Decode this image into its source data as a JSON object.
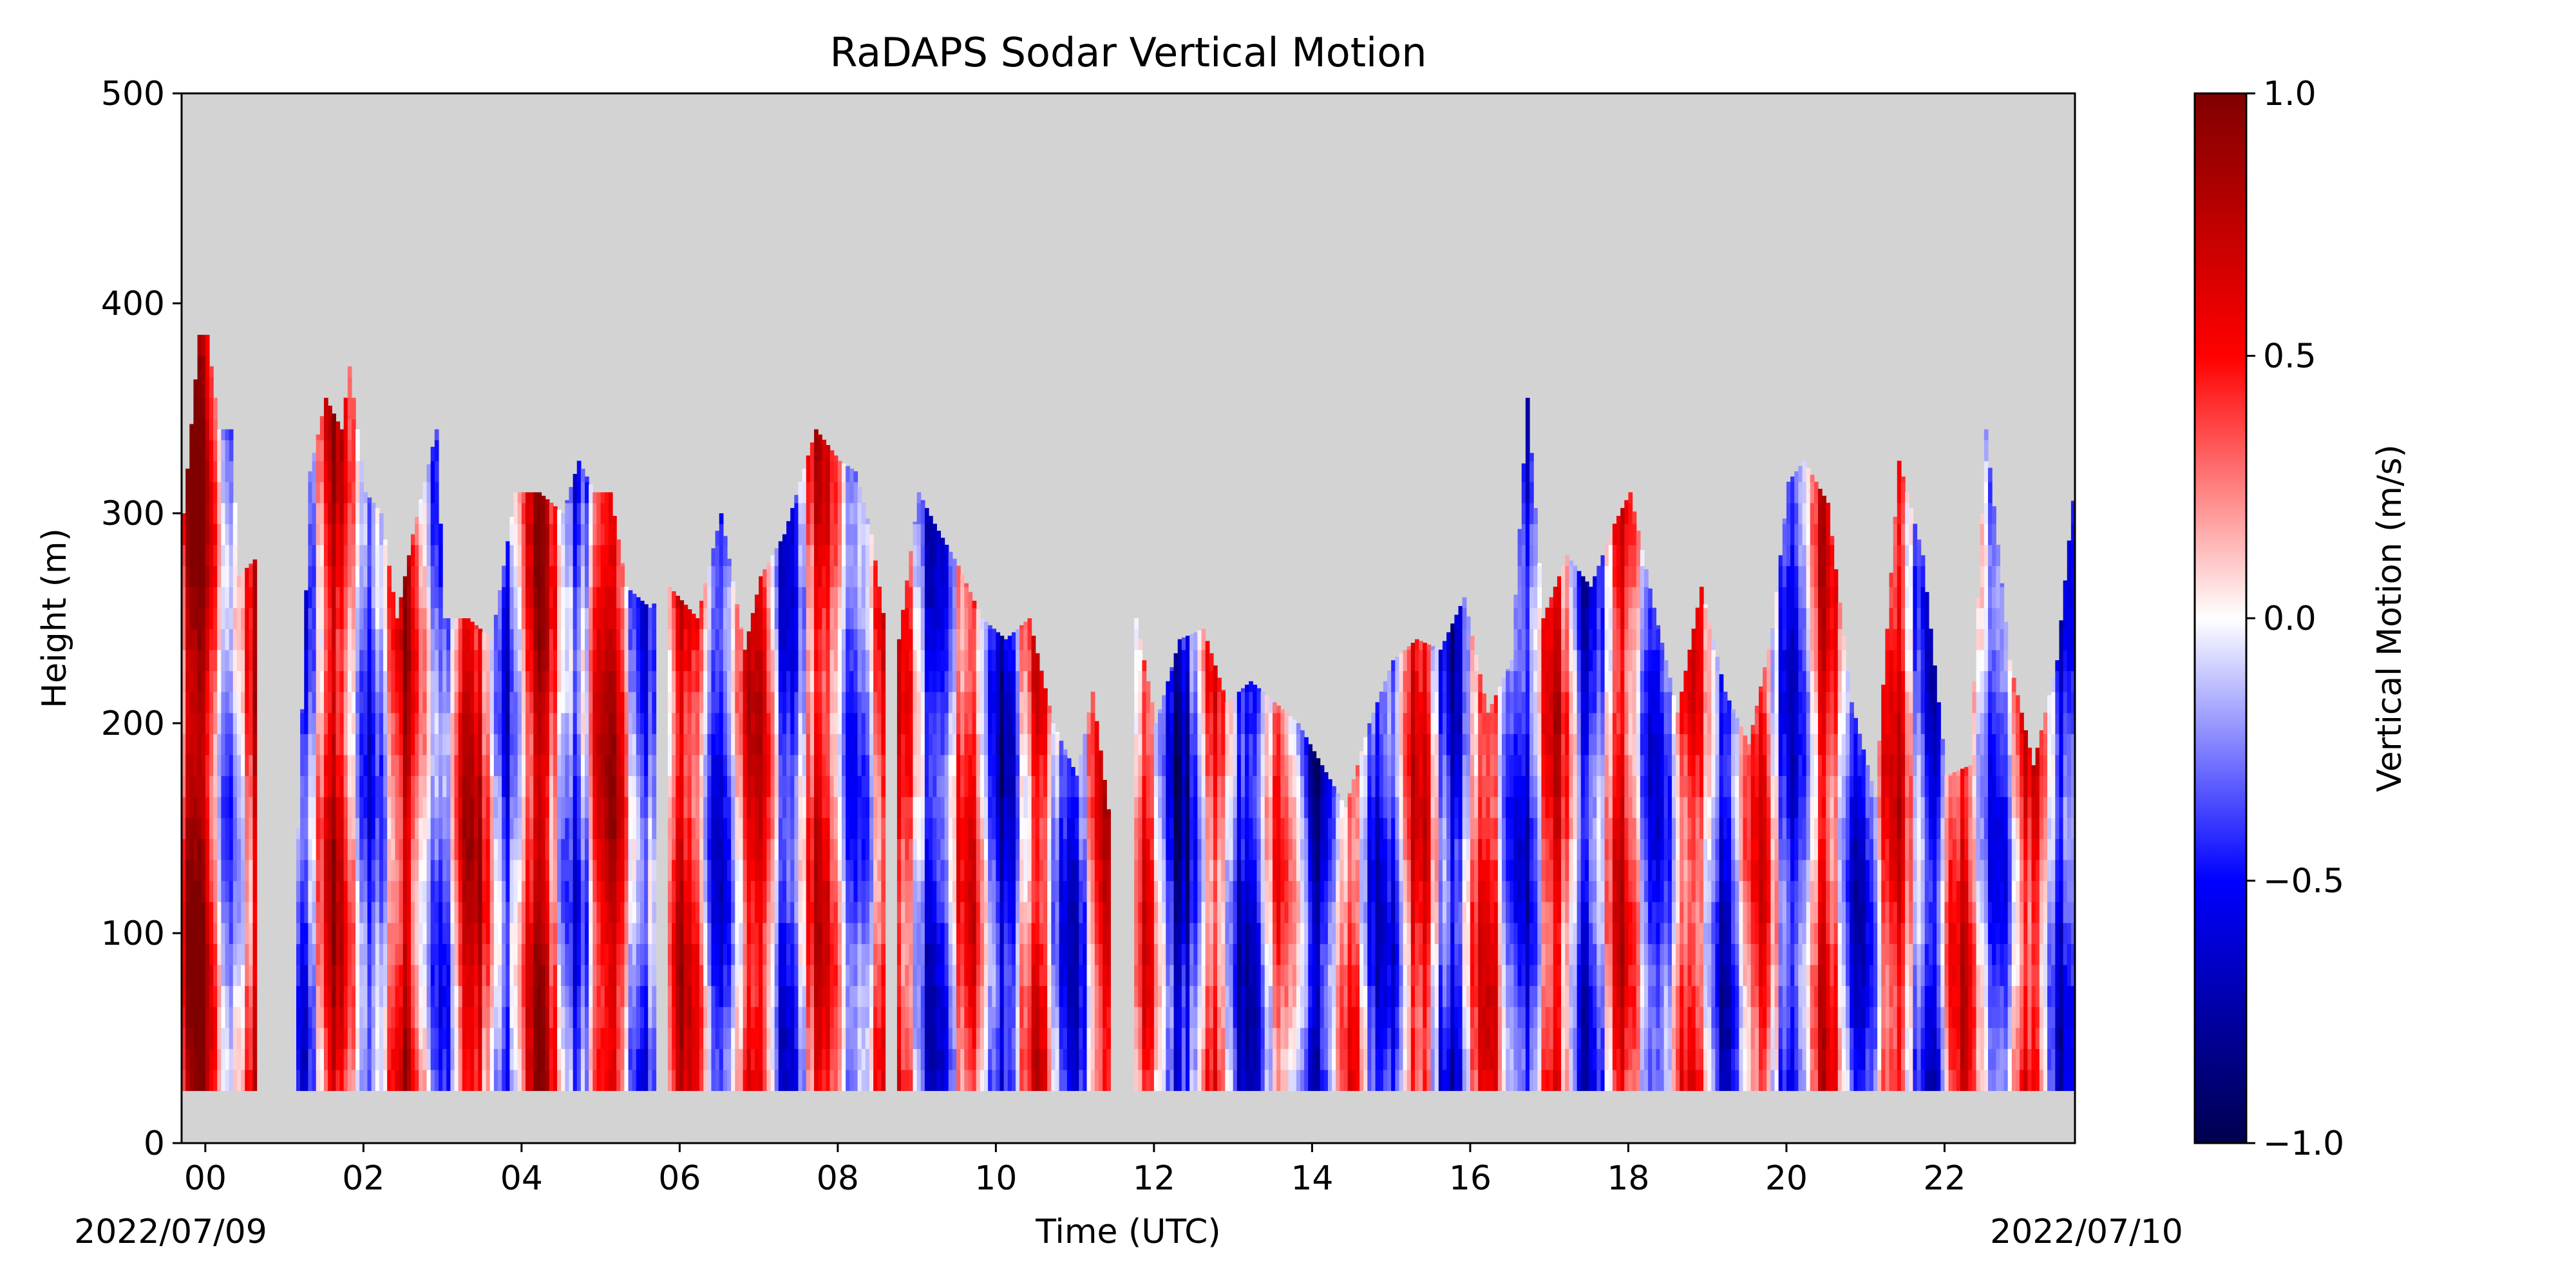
{
  "chart_data": {
    "type": "heatmap",
    "title": "RaDAPS Sodar Vertical Motion",
    "xlabel": "Time (UTC)",
    "ylabel": "Height (m)",
    "x_ticks": [
      "00",
      "02",
      "04",
      "06",
      "08",
      "10",
      "12",
      "14",
      "16",
      "18",
      "20",
      "22"
    ],
    "x_tick_hours": [
      0,
      2,
      4,
      6,
      8,
      10,
      12,
      14,
      16,
      18,
      20,
      22
    ],
    "x_range_hours": [
      -0.3,
      23.65
    ],
    "start_date": "2022/07/09",
    "end_date": "2022/07/10",
    "y_ticks": [
      "0",
      "100",
      "200",
      "300",
      "400",
      "500"
    ],
    "ylim": [
      0,
      500
    ],
    "min_height_m": 25,
    "background_color": "#d3d3d3",
    "colorbar": {
      "label": "Vertical Motion (m/s)",
      "vmin": -1.0,
      "vmax": 1.0,
      "ticks": [
        "−1.0",
        "−0.5",
        "0.0",
        "0.5",
        "1.0"
      ],
      "tick_values": [
        -1.0,
        -0.5,
        0.0,
        0.5,
        1.0
      ],
      "colormap": "seismic"
    },
    "data_coverage": [
      {
        "start_hour": -0.3,
        "end_hour": 0.65,
        "top_height_m": 385
      },
      {
        "start_hour": 1.15,
        "end_hour": 5.7,
        "top_height_m": 370
      },
      {
        "start_hour": 5.85,
        "end_hour": 8.6,
        "top_height_m": 340
      },
      {
        "start_hour": 8.75,
        "end_hour": 11.45,
        "top_height_m": 310
      },
      {
        "start_hour": 11.75,
        "end_hour": 23.65,
        "top_height_m": 355
      }
    ],
    "observed_top_height_m": [
      [
        -0.3,
        300
      ],
      [
        -0.1,
        385
      ],
      [
        0.0,
        385
      ],
      [
        0.15,
        340
      ],
      [
        0.3,
        340
      ],
      [
        0.4,
        270
      ],
      [
        0.65,
        280
      ],
      [
        1.15,
        150
      ],
      [
        1.3,
        320
      ],
      [
        1.5,
        355
      ],
      [
        1.7,
        340
      ],
      [
        1.8,
        370
      ],
      [
        2.0,
        310
      ],
      [
        2.2,
        300
      ],
      [
        2.4,
        250
      ],
      [
        2.6,
        290
      ],
      [
        2.9,
        340
      ],
      [
        3.0,
        250
      ],
      [
        3.3,
        250
      ],
      [
        3.6,
        240
      ],
      [
        3.9,
        310
      ],
      [
        4.2,
        310
      ],
      [
        4.5,
        300
      ],
      [
        4.7,
        325
      ],
      [
        4.9,
        310
      ],
      [
        5.1,
        310
      ],
      [
        5.3,
        265
      ],
      [
        5.6,
        255
      ],
      [
        5.85,
        265
      ],
      [
        6.2,
        250
      ],
      [
        6.5,
        300
      ],
      [
        6.8,
        235
      ],
      [
        7.0,
        270
      ],
      [
        7.3,
        290
      ],
      [
        7.7,
        340
      ],
      [
        8.0,
        325
      ],
      [
        8.2,
        320
      ],
      [
        8.4,
        290
      ],
      [
        8.6,
        240
      ],
      [
        8.75,
        240
      ],
      [
        9.0,
        310
      ],
      [
        9.2,
        295
      ],
      [
        9.5,
        275
      ],
      [
        9.8,
        250
      ],
      [
        10.1,
        240
      ],
      [
        10.4,
        250
      ],
      [
        10.7,
        200
      ],
      [
        11.0,
        175
      ],
      [
        11.2,
        215
      ],
      [
        11.45,
        145
      ],
      [
        11.75,
        250
      ],
      [
        12.0,
        200
      ],
      [
        12.3,
        240
      ],
      [
        12.6,
        245
      ],
      [
        12.9,
        210
      ],
      [
        13.2,
        220
      ],
      [
        13.5,
        210
      ],
      [
        13.8,
        200
      ],
      [
        14.1,
        180
      ],
      [
        14.4,
        160
      ],
      [
        14.7,
        200
      ],
      [
        15.0,
        230
      ],
      [
        15.3,
        240
      ],
      [
        15.6,
        235
      ],
      [
        15.9,
        260
      ],
      [
        16.2,
        205
      ],
      [
        16.5,
        230
      ],
      [
        16.7,
        355
      ],
      [
        16.9,
        250
      ],
      [
        17.2,
        280
      ],
      [
        17.5,
        265
      ],
      [
        17.8,
        295
      ],
      [
        18.0,
        310
      ],
      [
        18.3,
        255
      ],
      [
        18.6,
        205
      ],
      [
        18.9,
        265
      ],
      [
        19.2,
        215
      ],
      [
        19.5,
        190
      ],
      [
        19.8,
        245
      ],
      [
        20.0,
        315
      ],
      [
        20.2,
        325
      ],
      [
        20.5,
        305
      ],
      [
        20.8,
        210
      ],
      [
        21.1,
        165
      ],
      [
        21.4,
        325
      ],
      [
        21.7,
        280
      ],
      [
        22.0,
        175
      ],
      [
        22.3,
        180
      ],
      [
        22.5,
        340
      ],
      [
        22.8,
        230
      ],
      [
        23.1,
        180
      ],
      [
        23.4,
        230
      ],
      [
        23.65,
        325
      ]
    ]
  }
}
